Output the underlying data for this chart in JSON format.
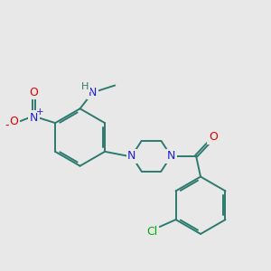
{
  "background_color": "#e8e8e8",
  "bond_color": "#2d7a6e",
  "atom_colors": {
    "N": "#2020cc",
    "O": "#dd0000",
    "Cl": "#00aa00",
    "H": "#2d7a6e",
    "C": "#2d7a6e"
  },
  "figsize": [
    3.0,
    3.0
  ],
  "dpi": 100,
  "lw": 1.4
}
